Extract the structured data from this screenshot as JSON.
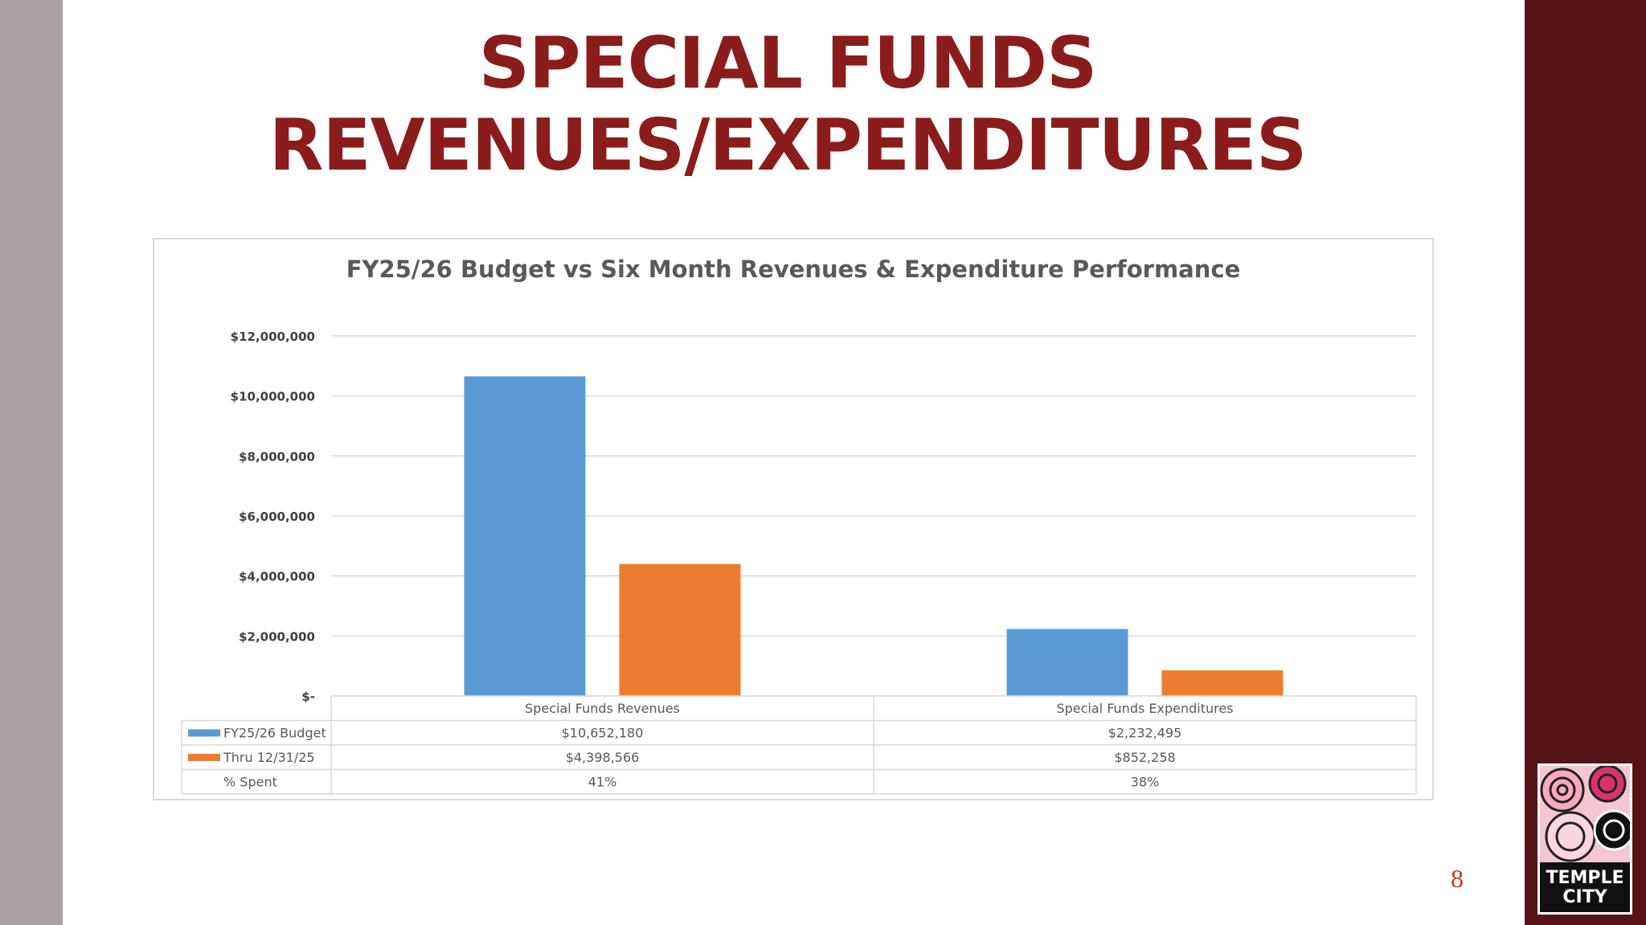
{
  "slide": {
    "title_line1": "SPECIAL FUNDS",
    "title_line2": "REVENUES/EXPENDITURES",
    "page_number": "8",
    "logo_text": "TEMPLE CITY"
  },
  "colors": {
    "budget": "#5b9bd5",
    "actual": "#ed7d31",
    "title": "#8b1c1c",
    "right_bar": "#561416",
    "left_bar": "#a9a1a4"
  },
  "chart_data": {
    "type": "bar",
    "title": "FY25/26 Budget vs Six Month  Revenues & Expenditure Performance",
    "categories": [
      "Special Funds Revenues",
      "Special Funds Expenditures"
    ],
    "series": [
      {
        "name": "FY25/26 Budget",
        "values": [
          10652180,
          2232495
        ],
        "labels": [
          "$10,652,180",
          "$2,232,495"
        ]
      },
      {
        "name": "Thru 12/31/25",
        "values": [
          4398566,
          852258
        ],
        "labels": [
          "$4,398,566",
          "$852,258"
        ]
      }
    ],
    "extra_row": {
      "name": "% Spent",
      "labels": [
        "41%",
        "38%"
      ]
    },
    "ylim": [
      0,
      12000000
    ],
    "y_ticks": [
      0,
      2000000,
      4000000,
      6000000,
      8000000,
      10000000,
      12000000
    ],
    "y_tick_labels": [
      "$-",
      "$2,000,000",
      "$4,000,000",
      "$6,000,000",
      "$8,000,000",
      "$10,000,000",
      "$12,000,000"
    ],
    "grid": true,
    "legend": "data-table"
  }
}
